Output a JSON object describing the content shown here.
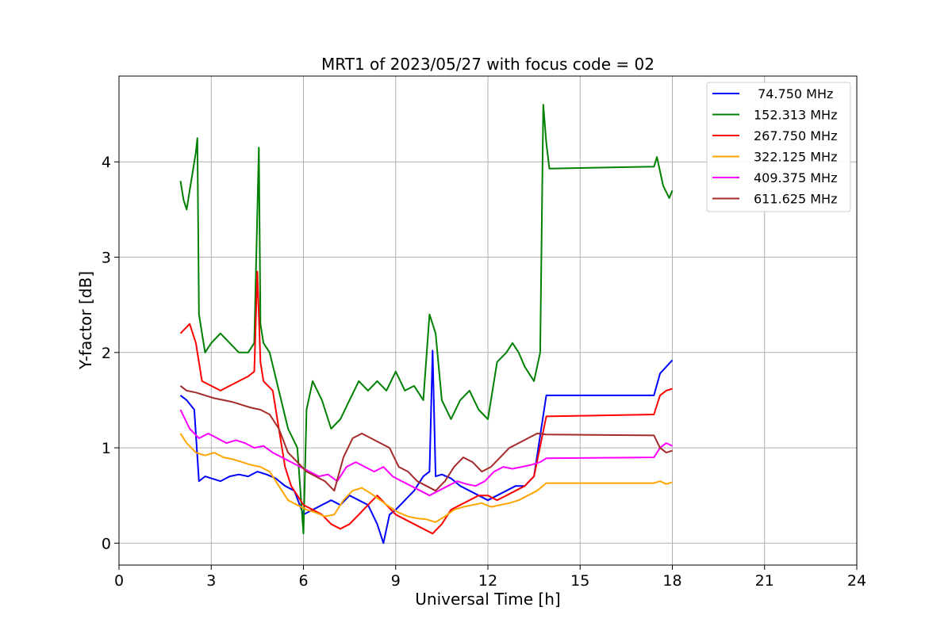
{
  "chart_data": {
    "type": "line",
    "title": "MRT1 of 2023/05/27 with focus code = 02",
    "xlabel": "Universal Time [h]",
    "ylabel": "Y-factor [dB]",
    "xlim": [
      0,
      24
    ],
    "ylim": [
      -0.23,
      4.9
    ],
    "xticks": [
      0,
      3,
      6,
      9,
      12,
      15,
      18,
      21,
      24
    ],
    "yticks": [
      0,
      1,
      2,
      3,
      4
    ],
    "grid": true,
    "legend_position": "top-right",
    "series": [
      {
        "name": " 74.750 MHz",
        "color": "#0000ff",
        "x": [
          2.0,
          2.2,
          2.45,
          2.6,
          2.8,
          3.0,
          3.3,
          3.6,
          3.9,
          4.2,
          4.5,
          4.8,
          5.1,
          5.4,
          5.7,
          6.0,
          6.3,
          6.6,
          6.9,
          7.2,
          7.5,
          7.8,
          8.1,
          8.4,
          8.6,
          8.8,
          9.0,
          9.3,
          9.6,
          9.9,
          10.1,
          10.2,
          10.3,
          10.5,
          10.8,
          11.1,
          11.4,
          11.7,
          12.0,
          12.3,
          12.6,
          12.9,
          13.2,
          13.5,
          13.9,
          17.4,
          17.6,
          17.8,
          18.0
        ],
        "y": [
          1.55,
          1.5,
          1.4,
          0.65,
          0.7,
          0.68,
          0.65,
          0.7,
          0.72,
          0.7,
          0.75,
          0.72,
          0.68,
          0.6,
          0.55,
          0.3,
          0.35,
          0.4,
          0.45,
          0.4,
          0.5,
          0.45,
          0.4,
          0.2,
          0.0,
          0.3,
          0.35,
          0.45,
          0.55,
          0.7,
          0.75,
          2.02,
          0.7,
          0.72,
          0.68,
          0.6,
          0.55,
          0.5,
          0.45,
          0.5,
          0.55,
          0.6,
          0.6,
          0.7,
          1.55,
          1.55,
          1.78,
          1.85,
          1.92
        ]
      },
      {
        "name": "152.313 MHz",
        "color": "#008000",
        "x": [
          2.0,
          2.1,
          2.2,
          2.3,
          2.4,
          2.5,
          2.55,
          2.6,
          2.8,
          3.0,
          3.3,
          3.6,
          3.9,
          4.2,
          4.4,
          4.55,
          4.6,
          4.7,
          4.9,
          5.2,
          5.5,
          5.8,
          6.0,
          6.1,
          6.3,
          6.6,
          6.9,
          7.2,
          7.5,
          7.8,
          8.1,
          8.4,
          8.7,
          9.0,
          9.3,
          9.6,
          9.9,
          10.1,
          10.3,
          10.5,
          10.8,
          11.1,
          11.4,
          11.7,
          12.0,
          12.3,
          12.6,
          12.8,
          13.0,
          13.2,
          13.5,
          13.7,
          13.8,
          13.9,
          14.0,
          17.4,
          17.5,
          17.7,
          17.9,
          18.0
        ],
        "y": [
          3.8,
          3.6,
          3.5,
          3.7,
          3.9,
          4.1,
          4.25,
          2.4,
          2.0,
          2.1,
          2.2,
          2.1,
          2.0,
          2.0,
          2.1,
          4.15,
          2.3,
          2.1,
          2.0,
          1.6,
          1.2,
          1.0,
          0.1,
          1.4,
          1.7,
          1.5,
          1.2,
          1.3,
          1.5,
          1.7,
          1.6,
          1.7,
          1.6,
          1.8,
          1.6,
          1.65,
          1.5,
          2.4,
          2.2,
          1.5,
          1.3,
          1.5,
          1.6,
          1.4,
          1.3,
          1.9,
          2.0,
          2.1,
          2.0,
          1.85,
          1.7,
          2.0,
          4.6,
          4.2,
          3.93,
          3.95,
          4.05,
          3.75,
          3.62,
          3.7
        ]
      },
      {
        "name": "267.750 MHz",
        "color": "#ff0000",
        "x": [
          2.0,
          2.3,
          2.5,
          2.7,
          3.0,
          3.3,
          3.6,
          3.9,
          4.2,
          4.4,
          4.5,
          4.6,
          4.7,
          5.0,
          5.2,
          5.4,
          5.6,
          5.8,
          6.0,
          6.3,
          6.6,
          6.9,
          7.2,
          7.5,
          7.8,
          8.1,
          8.4,
          8.7,
          9.0,
          9.3,
          9.6,
          9.9,
          10.2,
          10.5,
          10.8,
          11.1,
          11.4,
          11.7,
          12.0,
          12.3,
          12.6,
          12.9,
          13.2,
          13.5,
          13.9,
          17.4,
          17.6,
          17.8,
          18.0
        ],
        "y": [
          2.2,
          2.3,
          2.1,
          1.7,
          1.65,
          1.6,
          1.65,
          1.7,
          1.75,
          1.8,
          2.85,
          1.9,
          1.7,
          1.6,
          1.2,
          0.8,
          0.6,
          0.5,
          0.4,
          0.35,
          0.3,
          0.2,
          0.15,
          0.2,
          0.3,
          0.4,
          0.5,
          0.4,
          0.3,
          0.25,
          0.2,
          0.15,
          0.1,
          0.2,
          0.35,
          0.4,
          0.45,
          0.5,
          0.5,
          0.45,
          0.5,
          0.55,
          0.6,
          0.7,
          1.33,
          1.35,
          1.55,
          1.6,
          1.62
        ]
      },
      {
        "name": "322.125 MHz",
        "color": "#ffa500",
        "x": [
          2.0,
          2.2,
          2.5,
          2.8,
          3.1,
          3.4,
          3.7,
          4.0,
          4.3,
          4.6,
          4.9,
          5.2,
          5.5,
          5.8,
          6.1,
          6.4,
          6.7,
          7.0,
          7.3,
          7.6,
          7.9,
          8.2,
          8.5,
          8.8,
          9.1,
          9.4,
          9.7,
          10.0,
          10.3,
          10.6,
          10.9,
          11.2,
          11.5,
          11.8,
          12.1,
          12.4,
          12.7,
          13.0,
          13.3,
          13.6,
          13.9,
          17.4,
          17.6,
          17.8,
          18.0
        ],
        "y": [
          1.15,
          1.05,
          0.95,
          0.92,
          0.95,
          0.9,
          0.88,
          0.85,
          0.82,
          0.8,
          0.75,
          0.6,
          0.45,
          0.4,
          0.35,
          0.32,
          0.28,
          0.3,
          0.45,
          0.55,
          0.58,
          0.52,
          0.45,
          0.38,
          0.32,
          0.28,
          0.26,
          0.25,
          0.22,
          0.28,
          0.35,
          0.38,
          0.4,
          0.42,
          0.38,
          0.4,
          0.42,
          0.45,
          0.5,
          0.55,
          0.63,
          0.63,
          0.65,
          0.62,
          0.64
        ]
      },
      {
        "name": "409.375 MHz",
        "color": "#ff00ff",
        "x": [
          2.0,
          2.3,
          2.6,
          2.9,
          3.2,
          3.5,
          3.8,
          4.1,
          4.4,
          4.7,
          5.0,
          5.3,
          5.6,
          5.9,
          6.2,
          6.5,
          6.8,
          7.1,
          7.4,
          7.7,
          8.0,
          8.3,
          8.6,
          8.9,
          9.2,
          9.5,
          9.8,
          10.1,
          10.4,
          10.7,
          11.0,
          11.3,
          11.6,
          11.9,
          12.2,
          12.5,
          12.8,
          13.1,
          13.4,
          13.7,
          13.9,
          17.4,
          17.6,
          17.8,
          18.0
        ],
        "y": [
          1.4,
          1.2,
          1.1,
          1.15,
          1.1,
          1.05,
          1.08,
          1.05,
          1.0,
          1.02,
          0.95,
          0.9,
          0.85,
          0.8,
          0.75,
          0.7,
          0.72,
          0.65,
          0.8,
          0.85,
          0.8,
          0.75,
          0.8,
          0.7,
          0.65,
          0.6,
          0.55,
          0.5,
          0.55,
          0.6,
          0.65,
          0.62,
          0.6,
          0.65,
          0.75,
          0.8,
          0.78,
          0.8,
          0.82,
          0.85,
          0.89,
          0.9,
          1.0,
          1.05,
          1.02
        ]
      },
      {
        "name": "611.625 MHz",
        "color": "#a52a2a",
        "x": [
          2.0,
          2.2,
          2.5,
          2.8,
          3.1,
          3.4,
          3.7,
          4.0,
          4.3,
          4.6,
          4.9,
          5.2,
          5.5,
          5.8,
          6.1,
          6.4,
          6.7,
          7.0,
          7.3,
          7.6,
          7.9,
          8.2,
          8.5,
          8.8,
          9.1,
          9.4,
          9.7,
          10.0,
          10.3,
          10.6,
          10.9,
          11.2,
          11.5,
          11.8,
          12.1,
          12.4,
          12.7,
          13.0,
          13.3,
          13.6,
          13.9,
          17.4,
          17.6,
          17.8,
          18.0
        ],
        "y": [
          1.65,
          1.6,
          1.58,
          1.55,
          1.52,
          1.5,
          1.48,
          1.45,
          1.42,
          1.4,
          1.35,
          1.2,
          0.95,
          0.85,
          0.75,
          0.7,
          0.65,
          0.55,
          0.9,
          1.1,
          1.15,
          1.1,
          1.05,
          1.0,
          0.8,
          0.75,
          0.65,
          0.6,
          0.55,
          0.65,
          0.8,
          0.9,
          0.85,
          0.75,
          0.8,
          0.9,
          1.0,
          1.05,
          1.1,
          1.15,
          1.14,
          1.13,
          1.0,
          0.95,
          0.97
        ]
      }
    ]
  }
}
